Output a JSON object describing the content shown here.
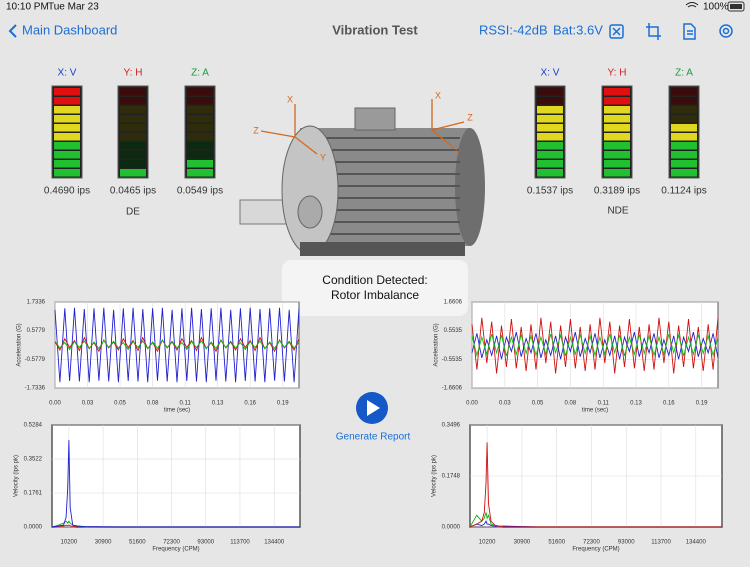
{
  "status_bar": {
    "time": "10:10 PM",
    "date": "Tue Mar 23",
    "battery": "100%"
  },
  "nav_bar": {
    "back": "Main Dashboard",
    "title": "Vibration Test",
    "rssi": "RSSI:-42dB",
    "battery": "Bat:3.6V"
  },
  "de": {
    "label": "DE",
    "meters": [
      {
        "axis": "X: V",
        "color": "#1a3fd0",
        "value": "0.4690 ips",
        "level": 10
      },
      {
        "axis": "Y: H",
        "color": "#d02020",
        "value": "0.0465 ips",
        "level": 1
      },
      {
        "axis": "Z: A",
        "color": "#1a9a3a",
        "value": "0.0549 ips",
        "level": 2
      }
    ]
  },
  "nde": {
    "label": "NDE",
    "meters": [
      {
        "axis": "X: V",
        "color": "#1a3fd0",
        "value": "0.1537 ips",
        "level": 8
      },
      {
        "axis": "Y: H",
        "color": "#d02020",
        "value": "0.3189 ips",
        "level": 10
      },
      {
        "axis": "Z: A",
        "color": "#1a9a3a",
        "value": "0.1124 ips",
        "level": 6
      }
    ]
  },
  "motor_axes": [
    {
      "x": "X",
      "y": "Y",
      "z": "Z"
    },
    {
      "x": "X",
      "y": "Y",
      "z": "Z"
    }
  ],
  "popup": {
    "title": "Condition Detected:",
    "message": "Rotor Imbalance"
  },
  "report_button": "Generate Report",
  "chart_data": [
    {
      "type": "line",
      "ylabel": "Acceleration (G)",
      "xlabel": "time (sec)",
      "grid": true,
      "xlim": [
        0,
        0.2
      ],
      "ylim": [
        -1.7336,
        1.7336
      ],
      "yticks": [
        1.7336,
        0.5779,
        -0.5779,
        -1.7336
      ],
      "xticks": [
        {
          "value": 0,
          "label": "0.00"
        },
        {
          "value": 0.0267,
          "label": "0.03"
        },
        {
          "value": 0.0533,
          "label": "0.05"
        },
        0.08,
        {
          "value": 0.1067,
          "label": "0.11"
        },
        {
          "value": 0.1333,
          "label": "0.13"
        },
        0.16,
        {
          "value": 0.1867,
          "label": "0.19"
        }
      ],
      "x": [
        0,
        0.004,
        0.008,
        0.012,
        0.016,
        0.02,
        0.024,
        0.028,
        0.032,
        0.036,
        0.04,
        0.044,
        0.048,
        0.052,
        0.056,
        0.06,
        0.064,
        0.068,
        0.072,
        0.076,
        0.08,
        0.084,
        0.088,
        0.092,
        0.096,
        0.1,
        0.104,
        0.108,
        0.112,
        0.116,
        0.12,
        0.124,
        0.128,
        0.132,
        0.136,
        0.14,
        0.144,
        0.148,
        0.152,
        0.156,
        0.16,
        0.164,
        0.168,
        0.172,
        0.176,
        0.18,
        0.184,
        0.188,
        0.192,
        0.196,
        0.2
      ],
      "series": [
        {
          "color": "#2020d0",
          "values": [
            1.42,
            -1.5,
            1.48,
            -1.45,
            1.5,
            -1.47,
            1.45,
            -1.5,
            1.48,
            -1.44,
            1.5,
            -1.47,
            1.42,
            -1.5,
            1.48,
            -1.45,
            1.5,
            -1.47,
            1.45,
            -1.5,
            1.48,
            -1.44,
            1.5,
            -1.47,
            1.42,
            -1.5,
            1.48,
            -1.45,
            1.5,
            -1.47,
            1.45,
            -1.5,
            1.48,
            -1.44,
            1.5,
            -1.47,
            1.42,
            -1.5,
            1.48,
            -1.45,
            1.5,
            -1.47,
            1.45,
            -1.5,
            1.48,
            -1.44,
            1.5,
            -1.47,
            1.42,
            -1.5,
            1.48
          ]
        },
        {
          "color": "#d01010",
          "values": [
            0.12,
            -0.2,
            0.25,
            -0.1,
            0.18,
            -0.22,
            0.3,
            -0.15,
            0.1,
            -0.25,
            0.2,
            -0.12,
            0.12,
            -0.2,
            0.25,
            -0.1,
            0.18,
            -0.22,
            0.3,
            -0.15,
            0.1,
            -0.25,
            0.2,
            -0.12,
            0.12,
            -0.2,
            0.25,
            -0.1,
            0.18,
            -0.22,
            0.3,
            -0.15,
            0.1,
            -0.25,
            0.2,
            -0.12,
            0.12,
            -0.2,
            0.25,
            -0.1,
            0.18,
            -0.22,
            0.3,
            -0.15,
            0.1,
            -0.25,
            0.2,
            -0.12,
            0.12,
            -0.2,
            0.25
          ]
        },
        {
          "color": "#10b010",
          "values": [
            0.15,
            -0.12,
            0.1,
            -0.18,
            0.14,
            -0.1,
            0.16,
            -0.15,
            0.12,
            -0.14,
            0.18,
            -0.1,
            0.15,
            -0.12,
            0.1,
            -0.18,
            0.14,
            -0.1,
            0.16,
            -0.15,
            0.12,
            -0.14,
            0.18,
            -0.1,
            0.15,
            -0.12,
            0.1,
            -0.18,
            0.14,
            -0.1,
            0.16,
            -0.15,
            0.12,
            -0.14,
            0.18,
            -0.1,
            0.15,
            -0.12,
            0.1,
            -0.18,
            0.14,
            -0.1,
            0.16,
            -0.15,
            0.12,
            -0.14,
            0.18,
            -0.1,
            0.15,
            -0.12,
            0.1
          ]
        }
      ]
    },
    {
      "type": "line",
      "ylabel": "Acceleration (G)",
      "xlabel": "time (sec)",
      "grid": true,
      "xlim": [
        0,
        0.2
      ],
      "ylim": [
        -1.6606,
        1.6606
      ],
      "yticks": [
        1.6606,
        0.5535,
        -0.5535,
        -1.6606
      ],
      "xticks": [
        {
          "value": 0,
          "label": "0.00"
        },
        {
          "value": 0.0267,
          "label": "0.03"
        },
        {
          "value": 0.0533,
          "label": "0.05"
        },
        0.08,
        {
          "value": 0.1067,
          "label": "0.11"
        },
        {
          "value": 0.1333,
          "label": "0.13"
        },
        0.16,
        {
          "value": 0.1867,
          "label": "0.19"
        }
      ],
      "x": [
        0,
        0.004,
        0.008,
        0.012,
        0.016,
        0.02,
        0.024,
        0.028,
        0.032,
        0.036,
        0.04,
        0.044,
        0.048,
        0.052,
        0.056,
        0.06,
        0.064,
        0.068,
        0.072,
        0.076,
        0.08,
        0.084,
        0.088,
        0.092,
        0.096,
        0.1,
        0.104,
        0.108,
        0.112,
        0.116,
        0.12,
        0.124,
        0.128,
        0.132,
        0.136,
        0.14,
        0.144,
        0.148,
        0.152,
        0.156,
        0.16,
        0.164,
        0.168,
        0.172,
        0.176,
        0.18,
        0.184,
        0.188,
        0.192,
        0.196,
        0.2
      ],
      "series": [
        {
          "color": "#d01010",
          "values": [
            0.8,
            -0.95,
            1.05,
            -0.7,
            0.9,
            -1.1,
            0.75,
            -0.85,
            1.0,
            -0.9,
            0.7,
            -1.0,
            0.8,
            -0.95,
            1.05,
            -0.7,
            0.9,
            -1.1,
            0.75,
            -0.85,
            1.0,
            -0.9,
            0.7,
            -1.0,
            0.8,
            -0.95,
            1.05,
            -0.7,
            0.9,
            -1.1,
            0.75,
            -0.85,
            1.0,
            -0.9,
            0.7,
            -1.0,
            0.8,
            -0.95,
            1.05,
            -0.7,
            0.9,
            -1.1,
            0.75,
            -0.85,
            1.0,
            -0.9,
            0.7,
            -1.0,
            0.8,
            -0.95,
            1.05
          ]
        },
        {
          "color": "#2020d0",
          "values": [
            -0.3,
            0.45,
            -0.5,
            0.2,
            -0.4,
            0.35,
            -0.55,
            0.3,
            -0.25,
            0.5,
            -0.45,
            0.25,
            -0.3,
            0.45,
            -0.5,
            0.2,
            -0.4,
            0.35,
            -0.55,
            0.3,
            -0.25,
            0.5,
            -0.45,
            0.25,
            -0.3,
            0.45,
            -0.5,
            0.2,
            -0.4,
            0.35,
            -0.55,
            0.3,
            -0.25,
            0.5,
            -0.45,
            0.25,
            -0.3,
            0.45,
            -0.5,
            0.2,
            -0.4,
            0.35,
            -0.55,
            0.3,
            -0.25,
            0.5,
            -0.45,
            0.25,
            -0.3,
            0.45,
            -0.5
          ]
        },
        {
          "color": "#10c010",
          "values": [
            0.35,
            -0.4,
            0.3,
            -0.35,
            0.42,
            -0.3,
            0.38,
            -0.42,
            0.3,
            -0.36,
            0.4,
            -0.33,
            0.35,
            -0.4,
            0.3,
            -0.35,
            0.42,
            -0.3,
            0.38,
            -0.42,
            0.3,
            -0.36,
            0.4,
            -0.33,
            0.35,
            -0.4,
            0.3,
            -0.35,
            0.42,
            -0.3,
            0.38,
            -0.42,
            0.3,
            -0.36,
            0.4,
            -0.33,
            0.35,
            -0.4,
            0.3,
            -0.35,
            0.42,
            -0.3,
            0.38,
            -0.42,
            0.3,
            -0.36,
            0.4,
            -0.33,
            0.35,
            -0.4,
            0.3
          ]
        }
      ]
    },
    {
      "type": "line",
      "ylabel": "Velocity (ips pk)",
      "xlabel": "Frequency (CPM)",
      "grid": true,
      "xlim": [
        0,
        150000
      ],
      "ylim": [
        0,
        0.5284
      ],
      "yticks": [
        0.5284,
        0.3522,
        0.1761,
        {
          "value": 0,
          "label": "0.0000"
        }
      ],
      "xticks": [
        10200,
        30900,
        51600,
        72300,
        93000,
        113700,
        134400
      ],
      "x": [
        0,
        4000,
        7000,
        8500,
        9500,
        10200,
        11000,
        12500,
        15000,
        20000,
        40000,
        80000,
        150000
      ],
      "series": [
        {
          "color": "#d01010",
          "values": [
            0,
            0.003,
            0.005,
            0.01,
            0.008,
            0.01,
            0.006,
            0.003,
            0,
            0,
            0,
            0,
            0
          ]
        },
        {
          "color": "#10b010",
          "values": [
            0,
            0.01,
            0.02,
            0.03,
            0.02,
            0.03,
            0.02,
            0.01,
            0.005,
            0,
            0,
            0,
            0
          ]
        },
        {
          "color": "#2020d0",
          "values": [
            0,
            0.005,
            0.01,
            0.05,
            0.2,
            0.45,
            0.1,
            0.01,
            0.005,
            0.002,
            0,
            0,
            0
          ]
        }
      ]
    },
    {
      "type": "line",
      "ylabel": "Velocity (ips pk)",
      "xlabel": "Frequency (CPM)",
      "grid": true,
      "xlim": [
        0,
        150000
      ],
      "ylim": [
        0,
        0.3496
      ],
      "yticks": [
        0.3496,
        0.1748,
        {
          "value": 0,
          "label": "0.0000"
        }
      ],
      "xticks": [
        10200,
        30900,
        51600,
        72300,
        93000,
        113700,
        134400
      ],
      "x": [
        0,
        4000,
        7000,
        8500,
        9500,
        10200,
        11000,
        12500,
        15000,
        20000,
        40000,
        80000,
        150000
      ],
      "series": [
        {
          "color": "#2020d0",
          "values": [
            0,
            0.01,
            0.005,
            0.01,
            0.02,
            0.01,
            0.01,
            0.005,
            0.002,
            0.003,
            0,
            0,
            0
          ]
        },
        {
          "color": "#10b010",
          "values": [
            0,
            0.04,
            0.02,
            0.03,
            0.05,
            0.03,
            0.04,
            0.01,
            0.005,
            0,
            0,
            0,
            0
          ]
        },
        {
          "color": "#d01010",
          "values": [
            0,
            0.01,
            0.02,
            0.05,
            0.15,
            0.29,
            0.08,
            0.02,
            0.005,
            0,
            0,
            0,
            0
          ]
        }
      ]
    }
  ]
}
